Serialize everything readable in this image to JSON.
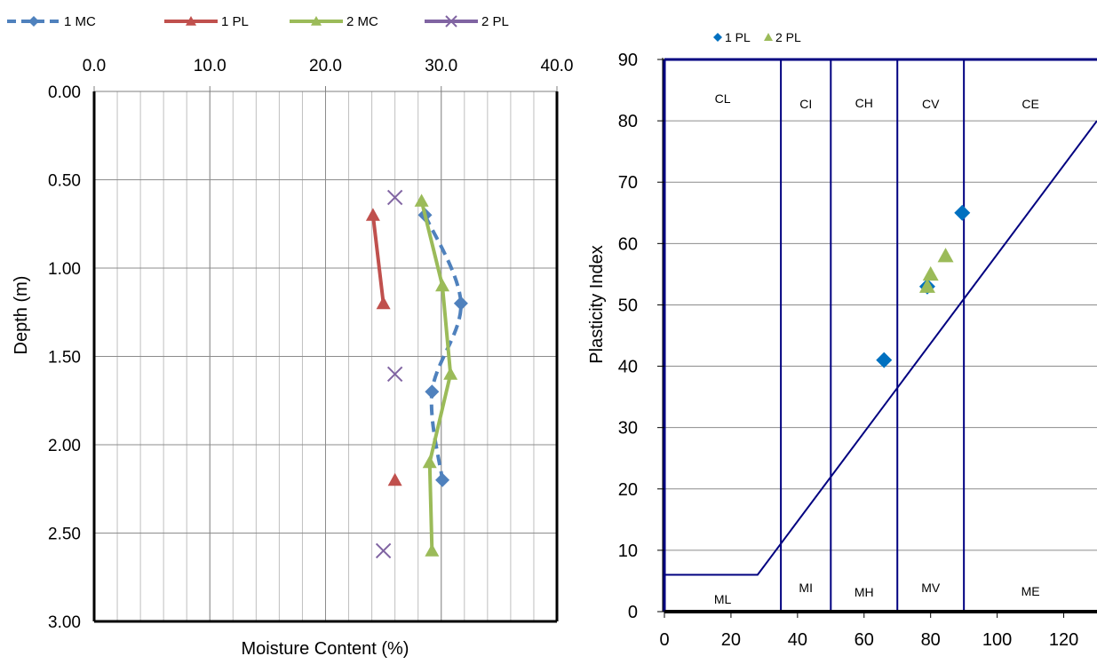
{
  "chart_data": [
    {
      "type": "line",
      "title": "",
      "xlabel": "Moisture Content (%)",
      "ylabel": "Depth (m)",
      "xlim": [
        0,
        40
      ],
      "ylim": [
        0,
        3
      ],
      "y_reversed": true,
      "x_axis_position": "top",
      "x_ticks": [
        "0.0",
        "10.0",
        "20.0",
        "30.0",
        "40.0"
      ],
      "y_ticks": [
        "0.00",
        "0.50",
        "1.00",
        "1.50",
        "2.00",
        "2.50",
        "3.00"
      ],
      "grid": true,
      "legend_position": "top",
      "series": [
        {
          "name": "1 MC",
          "color": "#4f81bd",
          "line": "dashed",
          "marker": "diamond",
          "points": [
            [
              28.6,
              0.7
            ],
            [
              31.7,
              1.2
            ],
            [
              29.2,
              1.7
            ],
            [
              30.1,
              2.2
            ]
          ]
        },
        {
          "name": "1 PL",
          "color": "#c0504d",
          "line": "solid",
          "marker": "triangle",
          "points": [
            [
              24.1,
              0.7
            ],
            [
              25.0,
              1.2
            ],
            null,
            [
              26.0,
              2.2
            ]
          ]
        },
        {
          "name": "2 MC",
          "color": "#9bbb59",
          "line": "solid",
          "marker": "triangle",
          "points": [
            [
              28.3,
              0.62
            ],
            [
              30.1,
              1.1
            ],
            [
              30.8,
              1.6
            ],
            [
              29.0,
              2.1
            ],
            [
              29.2,
              2.6
            ]
          ]
        },
        {
          "name": "2 PL",
          "color": "#8064a2",
          "line": "none",
          "marker": "x",
          "points": [
            [
              26.0,
              0.6
            ],
            [
              26.0,
              1.6
            ],
            [
              25.0,
              2.6
            ]
          ]
        }
      ]
    },
    {
      "type": "scatter",
      "title": "",
      "xlabel": "",
      "ylabel": "Plasticity Index",
      "xlim": [
        0,
        130
      ],
      "ylim": [
        0,
        90
      ],
      "x_ticks": [
        "0",
        "20",
        "40",
        "60",
        "80",
        "100",
        "120"
      ],
      "y_ticks": [
        "0",
        "10",
        "20",
        "30",
        "40",
        "50",
        "60",
        "70",
        "80",
        "90"
      ],
      "grid": "horizontal",
      "legend_position": "top",
      "series": [
        {
          "name": "1 PL",
          "color": "#0070c0",
          "marker": "diamond",
          "points": [
            [
              66,
              41
            ],
            [
              79,
              53
            ],
            [
              89.5,
              65
            ]
          ]
        },
        {
          "name": "2 PL",
          "color": "#9bbb59",
          "marker": "triangle",
          "points": [
            [
              79,
              53
            ],
            [
              80,
              55
            ],
            [
              84.5,
              58
            ]
          ]
        }
      ],
      "a_line": [
        [
          0,
          6
        ],
        [
          28,
          6
        ],
        [
          130,
          80
        ]
      ],
      "zone_boundaries_x": [
        35,
        50,
        70,
        90
      ],
      "zones_upper": [
        "CL",
        "CI",
        "CH",
        "CV",
        "CE"
      ],
      "zones_lower": [
        "ML",
        "MI",
        "MH",
        "MV",
        "ME"
      ],
      "line_color": "#000080"
    }
  ]
}
